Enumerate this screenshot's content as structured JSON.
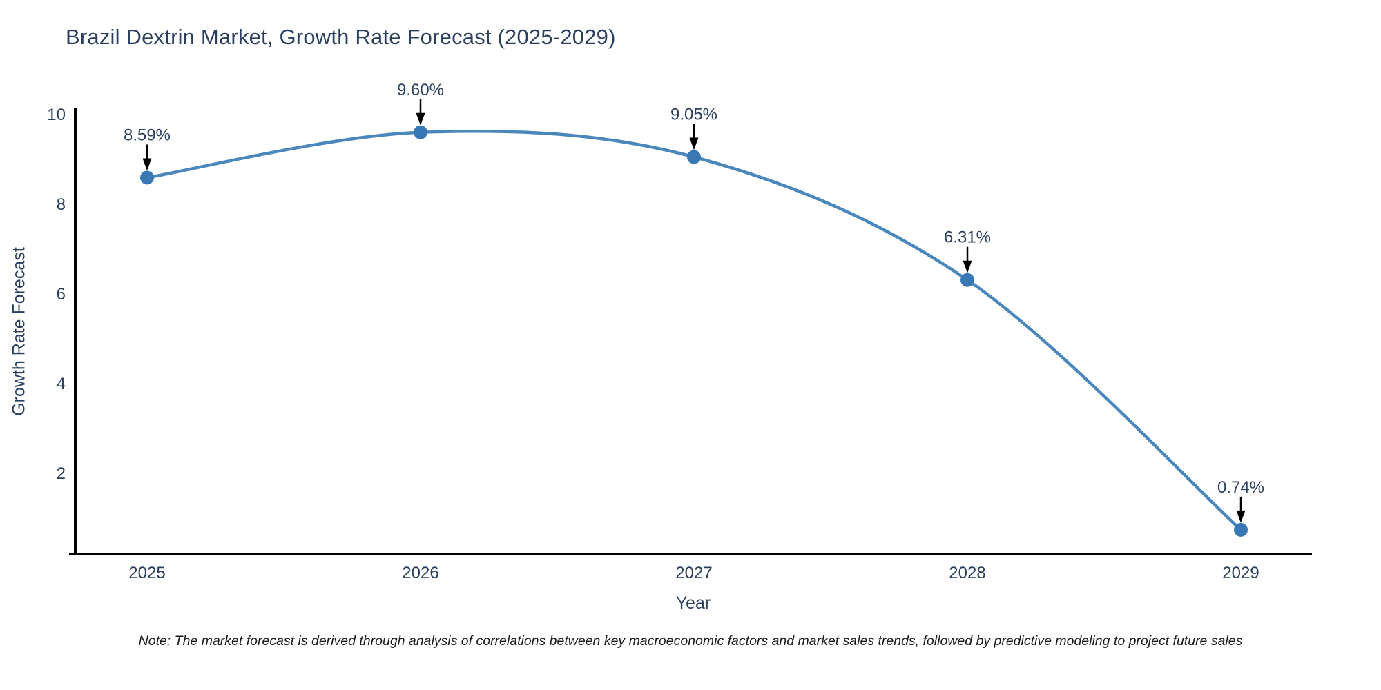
{
  "chart_data": {
    "type": "line",
    "title": "Brazil Dextrin Market, Growth Rate Forecast (2025-2029)",
    "xlabel": "Year",
    "ylabel": "Growth Rate Forecast",
    "categories": [
      "2025",
      "2026",
      "2027",
      "2028",
      "2029"
    ],
    "values": [
      8.59,
      9.6,
      9.05,
      6.31,
      0.74
    ],
    "point_labels": [
      "8.59%",
      "9.60%",
      "9.05%",
      "6.31%",
      "0.74%"
    ],
    "ylim": [
      0.2,
      10.15
    ],
    "yticks": [
      2,
      4,
      6,
      8,
      10
    ],
    "grid": false,
    "legend": "none",
    "line_color": "#4a87bd",
    "marker_color": "#3878b4",
    "axis_color": "#000000",
    "text_color": "#2a3f5f",
    "annotation_arrow_color": "#000000"
  },
  "note": "Note: The market forecast is derived through analysis of correlations between key macroeconomic factors and market sales trends, followed by predictive modeling to project future sales"
}
